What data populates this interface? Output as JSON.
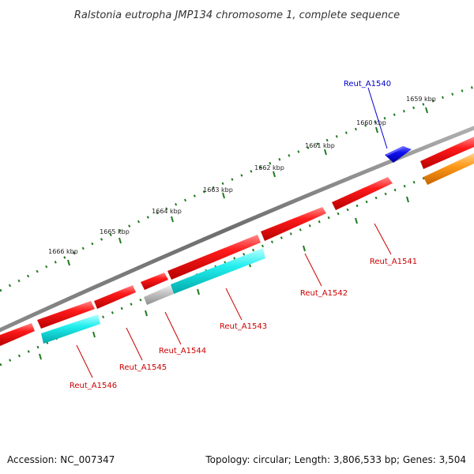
{
  "title": "Ralstonia eutropha JMP134 chromosome 1, complete sequence",
  "footer": {
    "accession": "Accession: NC_007347",
    "topology": "Topology: circular; Length: 3,806,533 bp; Genes: 3,504"
  },
  "ticks": [
    "1659 kbp",
    "1660 kbp",
    "1661 kbp",
    "1662 kbp",
    "1663 kbp",
    "1664 kbp",
    "1665 kbp",
    "1666 kbp"
  ],
  "genes": [
    {
      "name": "Reut_A1540",
      "color": "#0000cc"
    },
    {
      "name": "Reut_A1541",
      "color": "#cc0000"
    },
    {
      "name": "Reut_A1542",
      "color": "#cc0000"
    },
    {
      "name": "Reut_A1543",
      "color": "#cc0000"
    },
    {
      "name": "Reut_A1544",
      "color": "#cc0000"
    },
    {
      "name": "Reut_A1545",
      "color": "#cc0000"
    },
    {
      "name": "Reut_A1546",
      "color": "#cc0000"
    }
  ],
  "colors": {
    "backbone": "#7a7a7a",
    "ruler": "#1f7a1f",
    "forward_gene": "#ee1111",
    "reverse_gene": "#11dddd",
    "pseudo_gene": "#bbbbbb",
    "rna_gene": "#0000ee",
    "other_gene": "#ff8800"
  }
}
